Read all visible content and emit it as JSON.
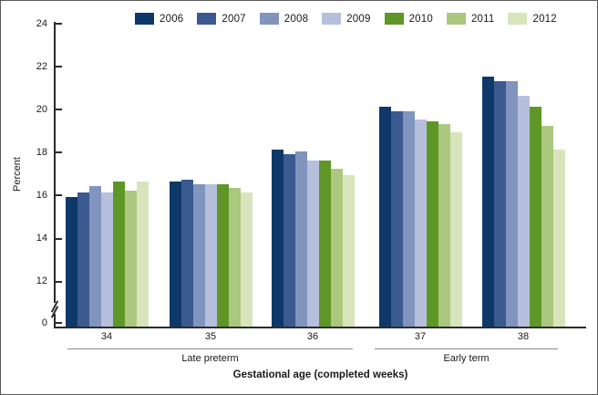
{
  "chart_data": {
    "type": "bar",
    "ylabel": "Percent",
    "xlabel": "Gestational age (completed weeks)",
    "ylim": [
      0,
      24
    ],
    "yticks": [
      24,
      22,
      20,
      18,
      16,
      14,
      12,
      0
    ],
    "axis_break_between": [
      0,
      12
    ],
    "grid": false,
    "legend_position": "top",
    "categories": [
      "34",
      "35",
      "36",
      "37",
      "38"
    ],
    "category_groups": [
      {
        "label": "Late preterm",
        "spans": [
          "34",
          "35",
          "36"
        ]
      },
      {
        "label": "Early term",
        "spans": [
          "37",
          "38"
        ]
      }
    ],
    "series": [
      {
        "name": "2006",
        "color": "#0d3869",
        "values": [
          15.9,
          16.6,
          18.1,
          20.1,
          21.5
        ]
      },
      {
        "name": "2007",
        "color": "#3a5a90",
        "values": [
          16.1,
          16.7,
          17.9,
          19.9,
          21.3
        ]
      },
      {
        "name": "2008",
        "color": "#8094be",
        "values": [
          16.4,
          16.5,
          18.0,
          19.9,
          21.3
        ]
      },
      {
        "name": "2009",
        "color": "#b6c0dc",
        "values": [
          16.1,
          16.5,
          17.6,
          19.5,
          20.6
        ]
      },
      {
        "name": "2010",
        "color": "#5f9727",
        "values": [
          16.6,
          16.5,
          17.6,
          19.4,
          20.1
        ]
      },
      {
        "name": "2011",
        "color": "#abc87e",
        "values": [
          16.2,
          16.3,
          17.2,
          19.3,
          19.2
        ]
      },
      {
        "name": "2012",
        "color": "#d8e5bc",
        "values": [
          16.6,
          16.1,
          16.9,
          18.9,
          18.1
        ]
      }
    ]
  }
}
